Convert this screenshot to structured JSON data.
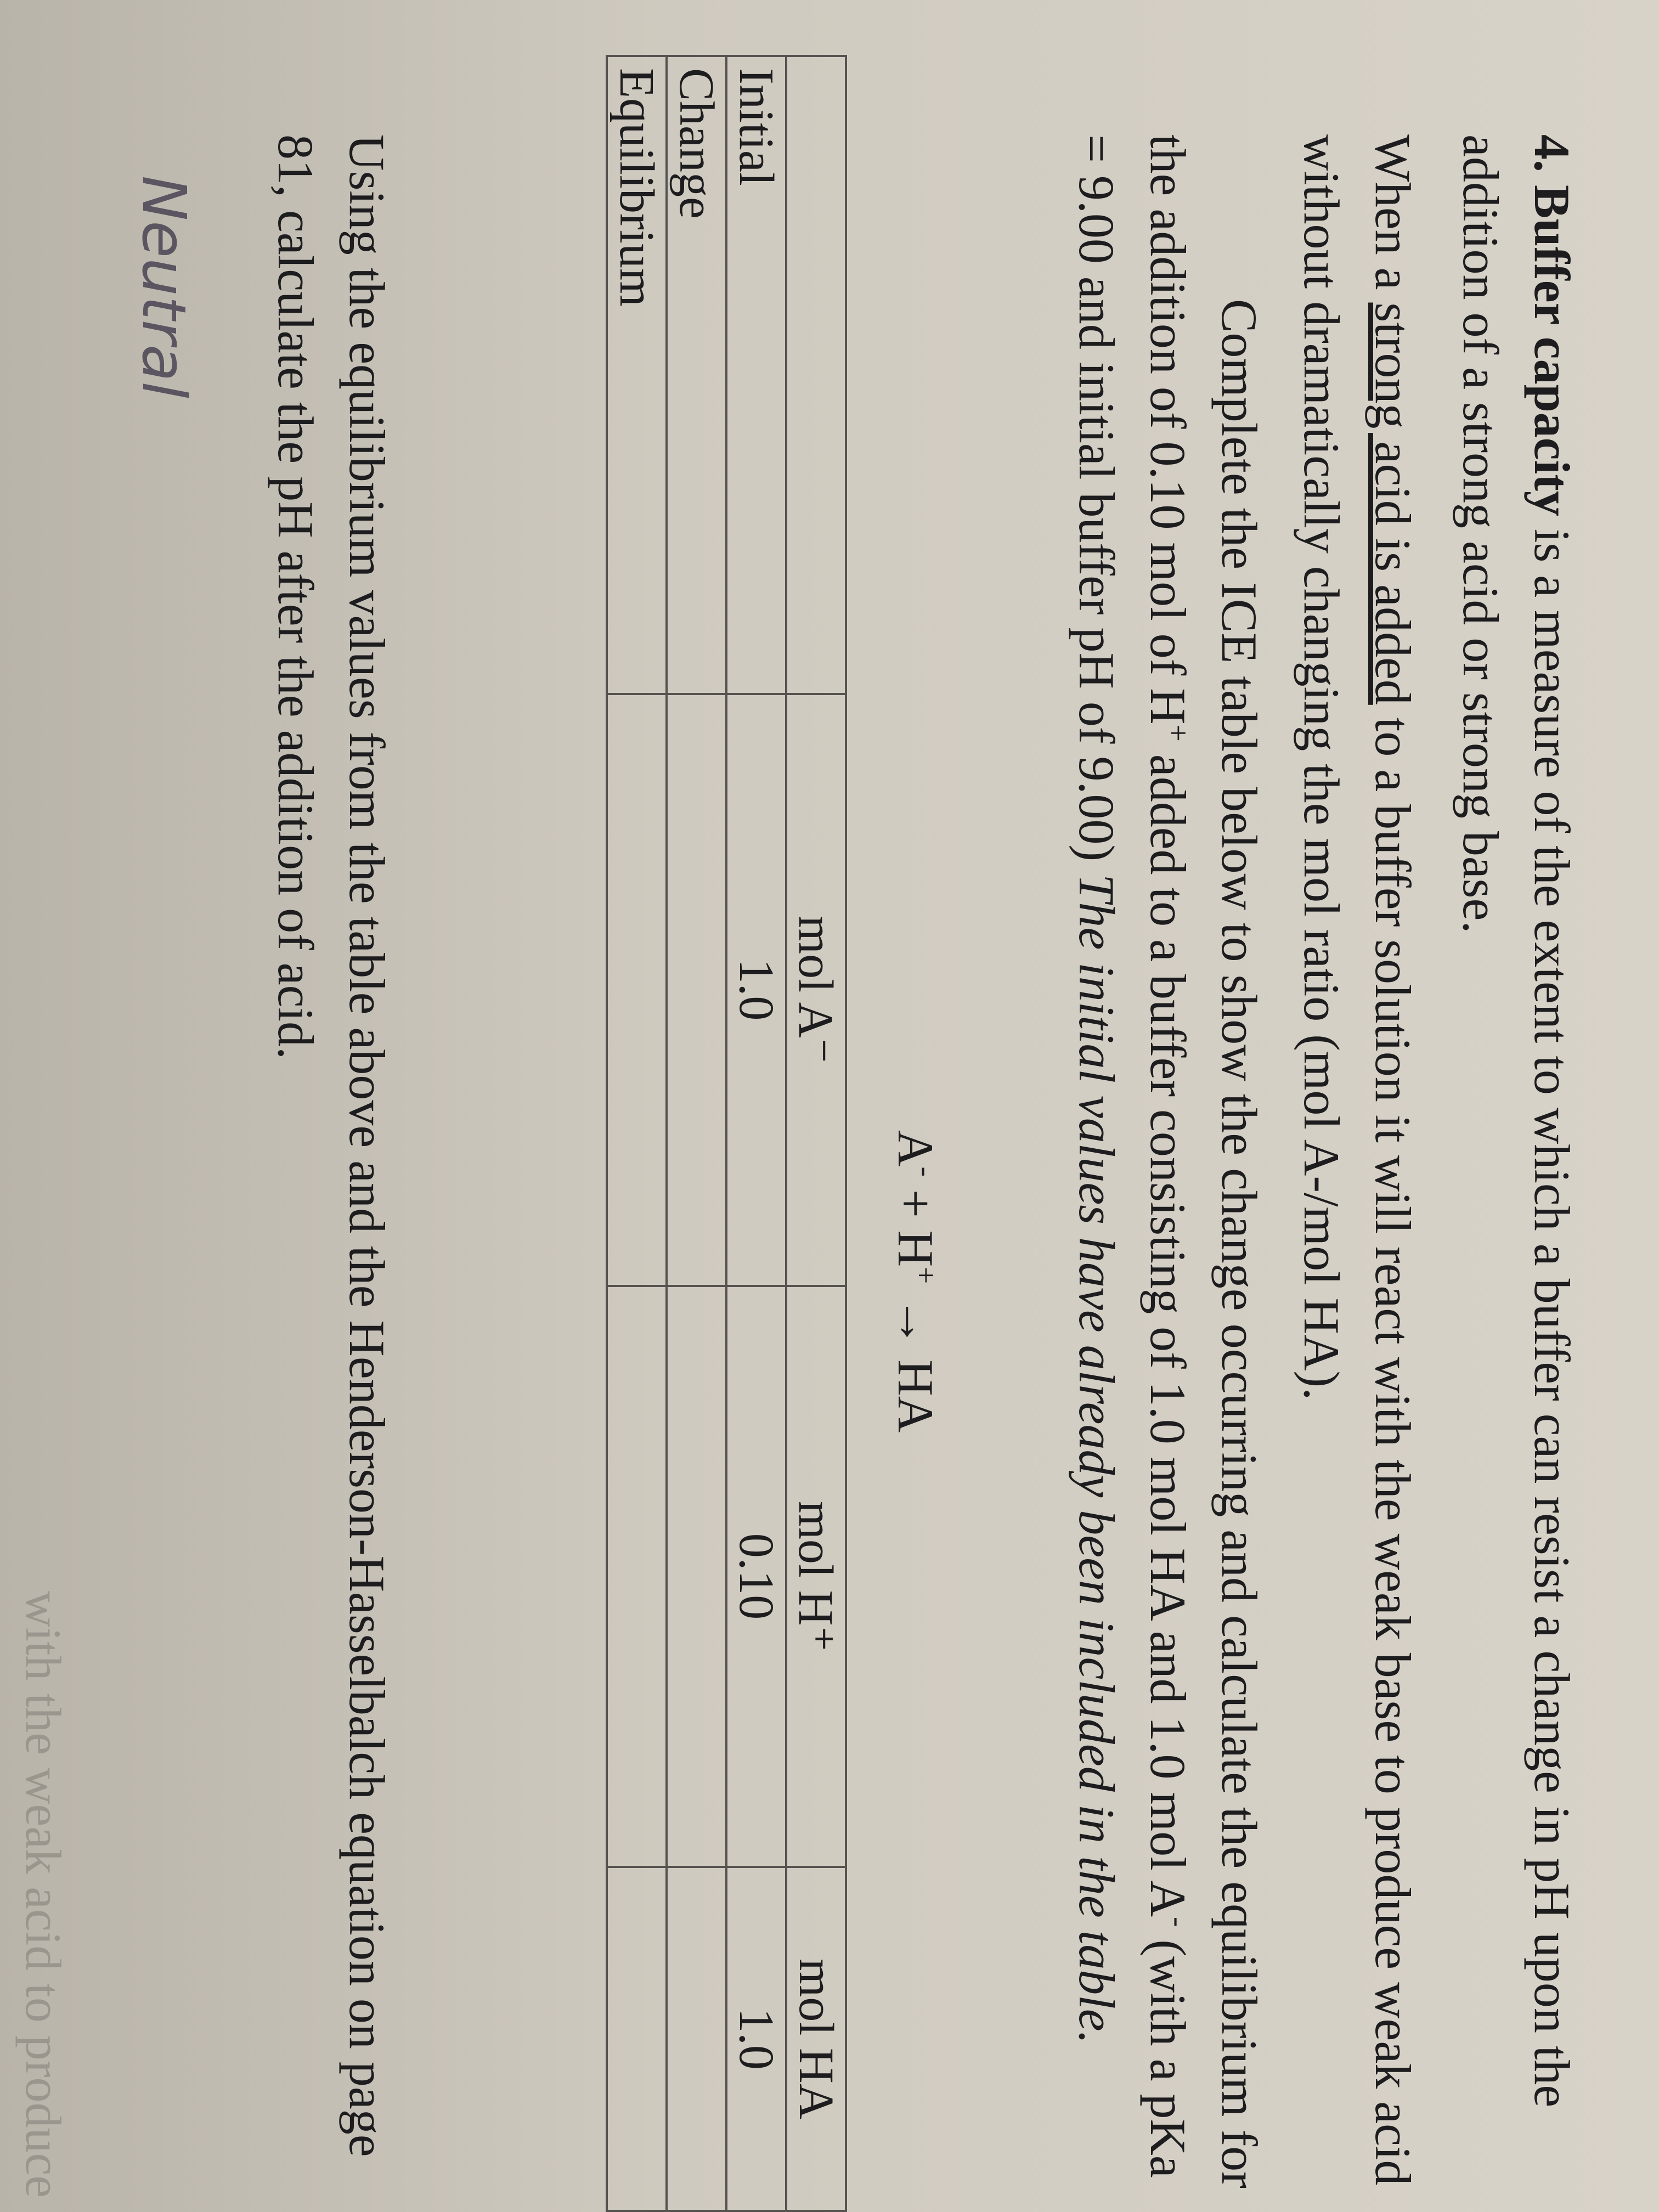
{
  "question": {
    "number": "4.",
    "term": "Buffer capacity",
    "definition": "is a measure of the extent to which a buffer can resist a change in pH upon the addition of a strong acid or strong base."
  },
  "paragraph": {
    "before": "When a ",
    "underlined": "strong acid is added",
    "after": " to a buffer solution it will react with the weak base to produce weak acid without dramatically changing the mol ratio (mol A-/mol HA)."
  },
  "instructions": {
    "part1": "Complete the ICE table below to show the change occurring and calculate the equilibrium for the addition of 0.10 mol of H",
    "sup1": "+",
    "part2": " added to a buffer consisting of 1.0 mol HA and 1.0 mol A",
    "sup2": "-",
    "part3": " (with a pKa = 9.00 and initial buffer pH of 9.00) ",
    "italic": "The initial values have already been included in the table."
  },
  "equation": {
    "a": "A",
    "a_sup": "-",
    "plus": " + H",
    "h_sup": "+",
    "rest": " → HA"
  },
  "table": {
    "columns": [
      "mol A⁻",
      "mol H⁺",
      "mol HA"
    ],
    "rows": [
      {
        "label": "Initial",
        "values": [
          "1.0",
          "0.10",
          "1.0"
        ]
      },
      {
        "label": "Change"
      },
      {
        "label": "Equilibrium"
      }
    ]
  },
  "follow_up": "Using the equilibrium values from the table above and the Henderson-Hasselbalch equation on page 81, calculate the pH after the addition of acid.",
  "handwriting": "Neutral",
  "bleed_text": "with the weak acid to produce we"
}
